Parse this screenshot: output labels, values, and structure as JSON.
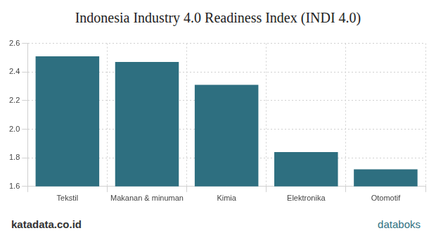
{
  "chart_data": {
    "type": "bar",
    "title": "Indonesia Industry 4.0 Readiness Index (INDI 4.0)",
    "categories": [
      "Tekstil",
      "Makanan & minuman",
      "Kimia",
      "Elektronika",
      "Otomotif"
    ],
    "values": [
      2.51,
      2.47,
      2.31,
      1.84,
      1.72
    ],
    "color": "#2e6f80",
    "ylim": [
      1.6,
      2.6
    ],
    "yticks": [
      1.6,
      1.8,
      {
        "value": 2,
        "label": "2.0"
      },
      2.2,
      2.4,
      2.6
    ],
    "grid": true,
    "annotations": [
      "katadata.co.id",
      "databoks"
    ]
  }
}
